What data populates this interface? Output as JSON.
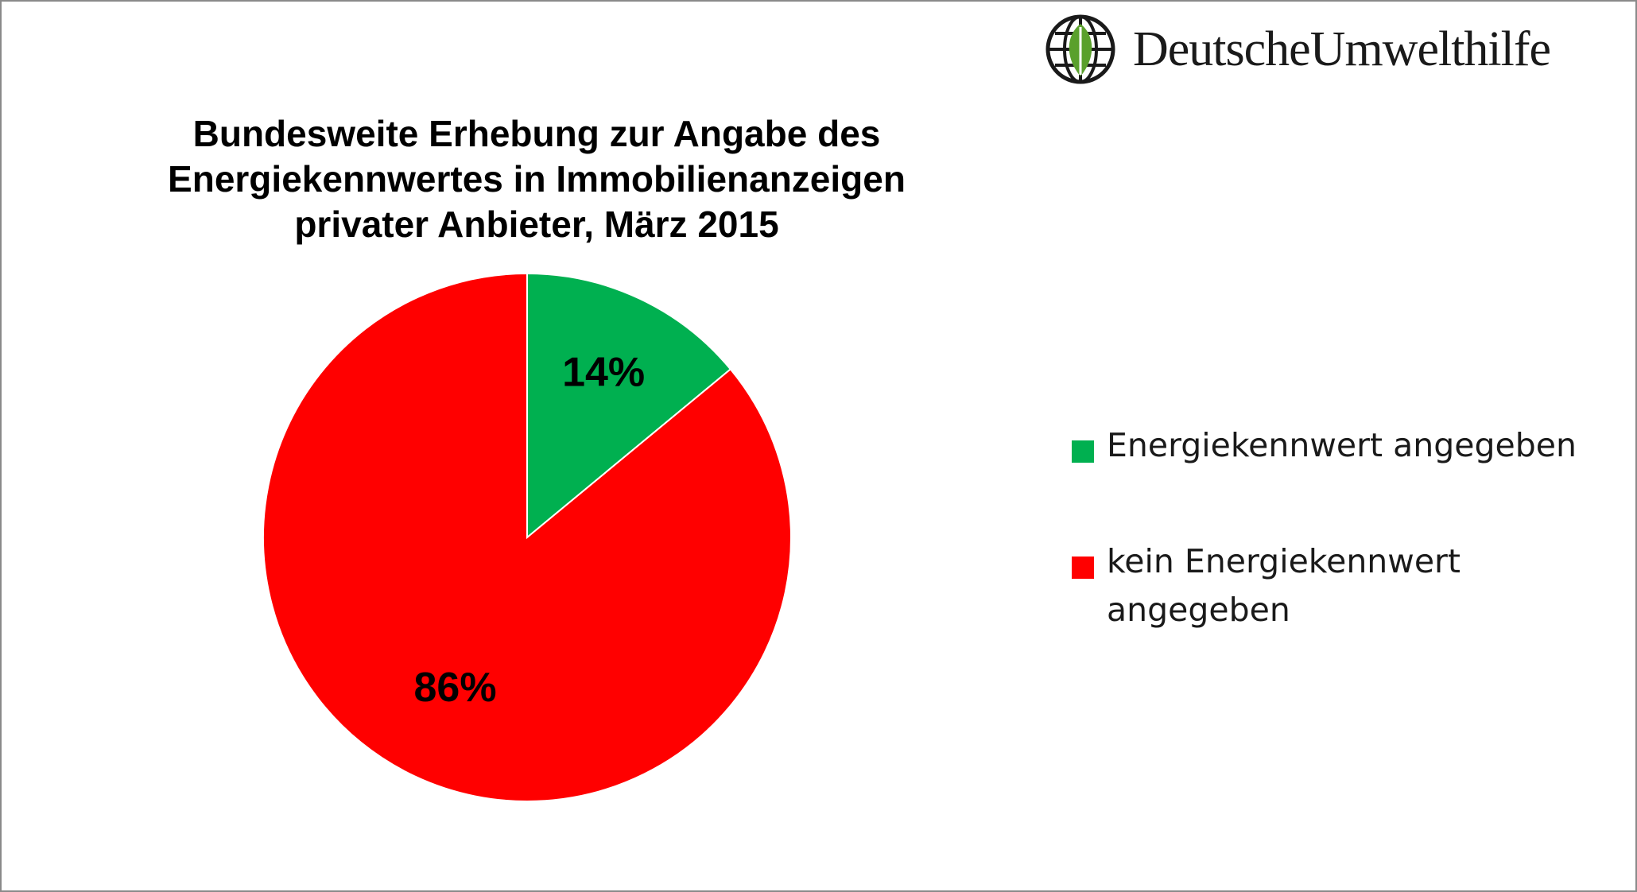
{
  "logo": {
    "text": "DeutscheUmwelthilfe",
    "icon": "globe-leaf-icon"
  },
  "chart_data": {
    "type": "pie",
    "title_lines": [
      "Bundesweite Erhebung zur Angabe des",
      "Energiekennwertes in Immobilienanzeigen",
      "privater Anbieter, März 2015"
    ],
    "slices": [
      {
        "label": "Energiekennwert angegeben",
        "value": 14,
        "display": "14%",
        "color": "#00b050"
      },
      {
        "label": "kein Energiekennwert angegeben",
        "value": 86,
        "display": "86%",
        "color": "#ff0000"
      }
    ],
    "legend": {
      "placement": "right",
      "items": [
        {
          "label": "Energiekennwert angegeben",
          "color": "#00b050"
        },
        {
          "label": "kein Energiekennwert angegeben",
          "color": "#ff0000"
        }
      ]
    }
  }
}
